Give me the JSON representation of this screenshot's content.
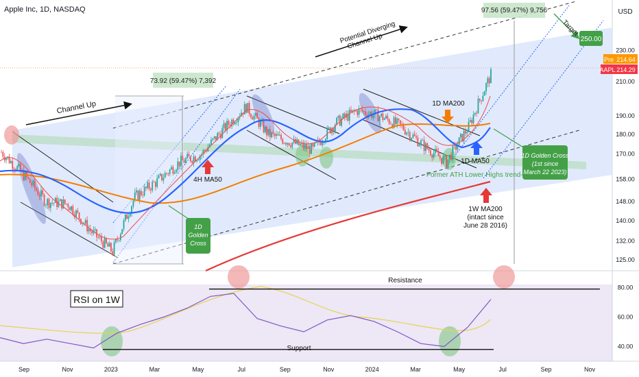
{
  "header": {
    "title": "Apple Inc, 1D, NASDAQ",
    "currency": "USD"
  },
  "colors": {
    "candle_up": "#26a69a",
    "candle_down": "#ef5350",
    "ma50": "#2962ff",
    "ma200": "#f57c00",
    "ma200w": "#e53935",
    "ma_fast": "#e53935",
    "channel_fill": "#dbe6fb",
    "rsi_bg": "#ede7f6",
    "rsi_line": "#7e57c2",
    "rsi_ma": "#e6d34a",
    "green_badge": "#43a047",
    "price_badge": "#f23645",
    "pre_badge": "#ff9800"
  },
  "price_axis": {
    "ticks": [
      "230.00",
      "210.00",
      "190.00",
      "180.00",
      "170.00",
      "158.00",
      "148.00",
      "140.00",
      "132.00",
      "125.00"
    ],
    "pre_label": "Pre",
    "pre_value": "214.64",
    "ticker_label": "AAPL",
    "last_value": "214.29",
    "target_value": "250.00"
  },
  "rsi_axis": {
    "ticks": [
      "80.00",
      "60.00",
      "40.00"
    ]
  },
  "time_axis": {
    "ticks": [
      "Sep",
      "Nov",
      "2023",
      "Mar",
      "May",
      "Jul",
      "Sep",
      "Nov",
      "2024",
      "Mar",
      "May",
      "Jul",
      "Sep",
      "Nov"
    ]
  },
  "annotations": {
    "channel_up": "Channel Up",
    "potential_channel_line1": "Potential Diverging",
    "potential_channel_line2": "Channel Up",
    "measure_1": "73.92 (59.47%) 7,392",
    "measure_2": "97.56 (59.47%) 9,756",
    "target": "Target",
    "ma200_1d": "1D MA200",
    "ma50_1d": "1D MA50",
    "ma50_4h": "4H MA50",
    "golden_cross_1_line1": "1D",
    "golden_cross_1_line2": "Golden",
    "golden_cross_1_line3": "Cross",
    "golden_cross_2_line1": "1D Golden Cross",
    "golden_cross_2_line2": "(1st since",
    "golden_cross_2_line3": "March 22 2023)",
    "former_ath": "Former ATH Lower Highs trend-line",
    "ma200_1w_line1": "1W MA200",
    "ma200_1w_line2": "(intact since",
    "ma200_1w_line3": "June 28 2016)",
    "rsi_title": "RSI on 1W",
    "resistance": "Resistance",
    "support": "Support"
  },
  "chart_data": {
    "type": "line",
    "title": "Apple Inc, 1D, NASDAQ",
    "x": [
      "2022-08",
      "2022-09",
      "2022-10",
      "2022-11",
      "2022-12",
      "2023-01",
      "2023-02",
      "2023-03",
      "2023-04",
      "2023-05",
      "2023-06",
      "2023-07",
      "2023-08",
      "2023-09",
      "2023-10",
      "2023-11",
      "2023-12",
      "2024-01",
      "2024-02",
      "2024-03",
      "2024-04",
      "2024-05",
      "2024-06"
    ],
    "series": [
      {
        "name": "",
        "values": [
          171,
          160,
          148,
          147,
          136,
          128,
          150,
          157,
          166,
          170,
          183,
          195,
          180,
          176,
          172,
          186,
          193,
          190,
          184,
          174,
          166,
          184,
          214
        ]
      }
    ],
    "y_scale": "log",
    "ylim": [
      122,
      262
    ],
    "rsi": {
      "ylim": [
        30,
        90
      ],
      "x": [
        "2022-09",
        "2022-10",
        "2022-11",
        "2022-12",
        "2023-01",
        "2023-02",
        "2023-03",
        "2023-04",
        "2023-05",
        "2023-06",
        "2023-07",
        "2023-08",
        "2023-09",
        "2023-10",
        "2023-11",
        "2023-12",
        "2024-01",
        "2024-02",
        "2024-03",
        "2024-04",
        "2024-05",
        "2024-06"
      ],
      "values": [
        46,
        42,
        45,
        42,
        39,
        49,
        55,
        60,
        66,
        74,
        76,
        59,
        54,
        50,
        58,
        61,
        57,
        50,
        42,
        40,
        53,
        72
      ],
      "resistance": 79,
      "support": 38
    }
  }
}
